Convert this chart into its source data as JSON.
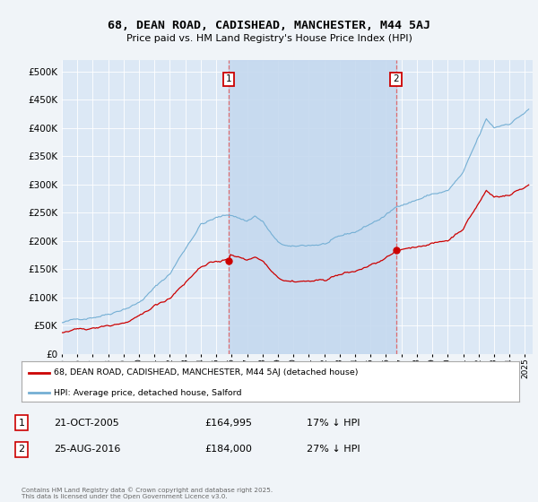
{
  "title": "68, DEAN ROAD, CADISHEAD, MANCHESTER, M44 5AJ",
  "subtitle": "Price paid vs. HM Land Registry's House Price Index (HPI)",
  "fig_bg": "#f0f4f8",
  "plot_bg": "#dce8f5",
  "hpi_color": "#74afd4",
  "price_color": "#cc0000",
  "vline_color": "#e06060",
  "shade_color": "#c5d9ef",
  "ylim": [
    0,
    520000
  ],
  "yticks": [
    0,
    50000,
    100000,
    150000,
    200000,
    250000,
    300000,
    350000,
    400000,
    450000,
    500000
  ],
  "xlim_start": 1995.0,
  "xlim_end": 2025.5,
  "sale1_x": 2005.8,
  "sale1_y": 164995,
  "sale2_x": 2016.65,
  "sale2_y": 184000,
  "legend_label_price": "68, DEAN ROAD, CADISHEAD, MANCHESTER, M44 5AJ (detached house)",
  "legend_label_hpi": "HPI: Average price, detached house, Salford",
  "sale1_date": "21-OCT-2005",
  "sale1_price": "£164,995",
  "sale1_hpi_text": "17% ↓ HPI",
  "sale2_date": "25-AUG-2016",
  "sale2_price": "£184,000",
  "sale2_hpi_text": "27% ↓ HPI",
  "footer": "Contains HM Land Registry data © Crown copyright and database right 2025.\nThis data is licensed under the Open Government Licence v3.0."
}
